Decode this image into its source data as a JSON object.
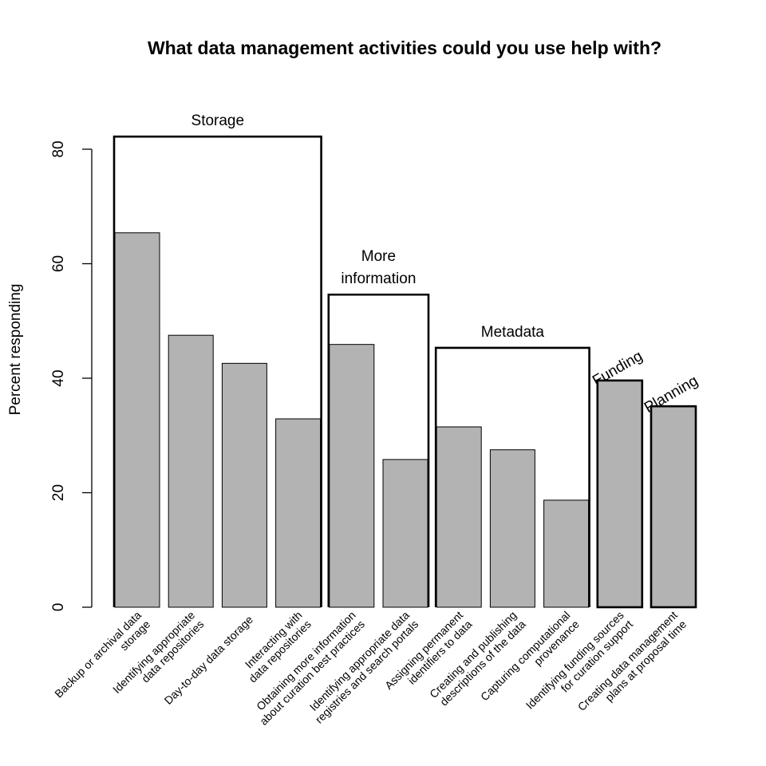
{
  "chart_data": {
    "type": "bar",
    "title": "What data management activities could you use help with?",
    "xlabel": "",
    "ylabel": "Percent responding",
    "ylim": [
      0,
      80
    ],
    "yticks": [
      "0",
      "20",
      "40",
      "60",
      "80"
    ],
    "grid": false,
    "bar_color": "#b3b3b3",
    "categories": [
      [
        "Backup or archival data",
        "storage"
      ],
      [
        "Identifying appropriate",
        "data repositories"
      ],
      [
        "Day-to-day data storage"
      ],
      [
        "Interacting with",
        "data repositories"
      ],
      [
        "Obtaining more information",
        "about curation best practices"
      ],
      [
        "Identifying appropriate data",
        "registries and search portals"
      ],
      [
        "Assigning permanent",
        "identifiers to data"
      ],
      [
        "Creating and publishing",
        "descriptions of the data"
      ],
      [
        "Capturing computational",
        "provenance"
      ],
      [
        "Identifying funding sources",
        "for curation support"
      ],
      [
        "Creating data management",
        "plans at proposal time"
      ]
    ],
    "values": [
      65.4,
      47.5,
      42.6,
      32.9,
      45.9,
      25.8,
      31.5,
      27.5,
      18.7,
      39.6,
      35.1
    ],
    "groups": [
      {
        "label": [
          "Storage"
        ],
        "start": 0,
        "end": 3,
        "value": 82.2
      },
      {
        "label": [
          "More",
          "information"
        ],
        "start": 4,
        "end": 5,
        "value": 54.6
      },
      {
        "label": [
          "Metadata"
        ],
        "start": 6,
        "end": 8,
        "value": 45.3
      },
      {
        "label": [
          "Funding"
        ],
        "start": 9,
        "end": 9,
        "value": 39.6,
        "rotated": true
      },
      {
        "label": [
          "Planning"
        ],
        "start": 10,
        "end": 10,
        "value": 35.1,
        "rotated": true
      }
    ]
  }
}
